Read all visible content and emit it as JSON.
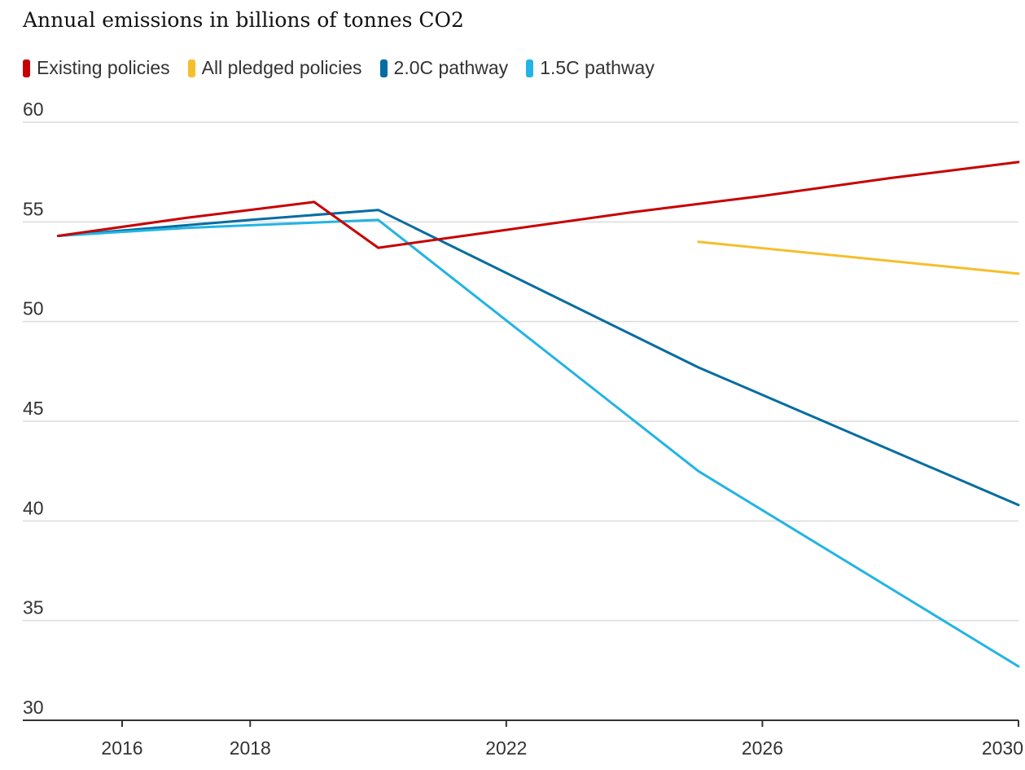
{
  "chart_data": {
    "type": "line",
    "title": "Annual emissions in billions of tonnes CO2",
    "xlabel": "",
    "ylabel": "",
    "xlim": [
      2014.8,
      2030
    ],
    "ylim": [
      30,
      60
    ],
    "x_ticks": [
      2016,
      2018,
      2022,
      2026,
      2030
    ],
    "y_ticks": [
      30,
      35,
      40,
      45,
      50,
      55,
      60
    ],
    "grid": "horizontal",
    "legend_position": "top-left",
    "series": [
      {
        "name": "Existing policies",
        "color": "#c70000",
        "x": [
          2015,
          2017,
          2019,
          2020,
          2022,
          2024,
          2026,
          2028,
          2030
        ],
        "y": [
          54.3,
          55.2,
          56.0,
          53.7,
          54.6,
          55.5,
          56.3,
          57.2,
          58.0
        ]
      },
      {
        "name": "All pledged policies",
        "color": "#f5be2c",
        "x": [
          2025,
          2030
        ],
        "y": [
          54.0,
          52.4
        ]
      },
      {
        "name": "2.0C pathway",
        "color": "#056da1",
        "x": [
          2015,
          2018,
          2020,
          2025,
          2030
        ],
        "y": [
          54.3,
          55.1,
          55.6,
          47.7,
          40.8
        ]
      },
      {
        "name": "1.5C pathway",
        "color": "#22b4e4",
        "x": [
          2015,
          2017,
          2020,
          2025,
          2030
        ],
        "y": [
          54.3,
          54.7,
          55.1,
          42.5,
          32.7
        ]
      }
    ]
  }
}
